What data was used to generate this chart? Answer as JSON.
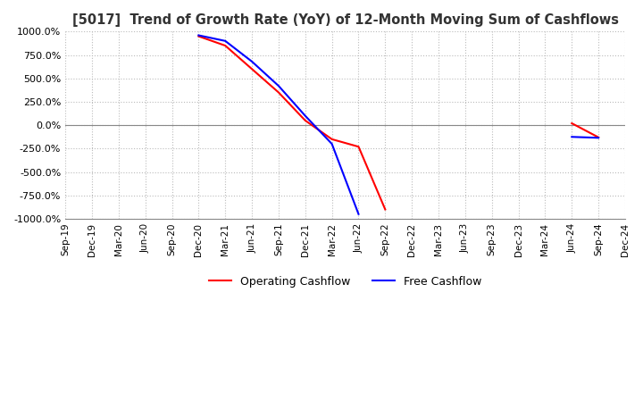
{
  "title": "[5017]  Trend of Growth Rate (YoY) of 12-Month Moving Sum of Cashflows",
  "ylim": [
    -1000,
    1000
  ],
  "yticks": [
    -1000,
    -750,
    -500,
    -250,
    0,
    250,
    500,
    750,
    1000
  ],
  "background_color": "#ffffff",
  "grid_color": "#bbbbbb",
  "legend_labels": [
    "Operating Cashflow",
    "Free Cashflow"
  ],
  "legend_colors": [
    "red",
    "blue"
  ],
  "x_labels": [
    "Sep-19",
    "Dec-19",
    "Mar-20",
    "Jun-20",
    "Sep-20",
    "Dec-20",
    "Mar-21",
    "Jun-21",
    "Sep-21",
    "Dec-21",
    "Mar-22",
    "Jun-22",
    "Sep-22",
    "Dec-22",
    "Mar-23",
    "Jun-23",
    "Sep-23",
    "Dec-23",
    "Mar-24",
    "Jun-24",
    "Sep-24",
    "Dec-24"
  ],
  "operating_cashflow": [
    null,
    null,
    null,
    null,
    null,
    950,
    850,
    600,
    350,
    50,
    -150,
    -230,
    -900,
    null,
    null,
    null,
    null,
    null,
    null,
    20,
    -130,
    null
  ],
  "free_cashflow": [
    null,
    null,
    null,
    null,
    null,
    960,
    900,
    680,
    420,
    100,
    -200,
    -950,
    null,
    null,
    null,
    null,
    null,
    null,
    null,
    -125,
    -135,
    null
  ]
}
